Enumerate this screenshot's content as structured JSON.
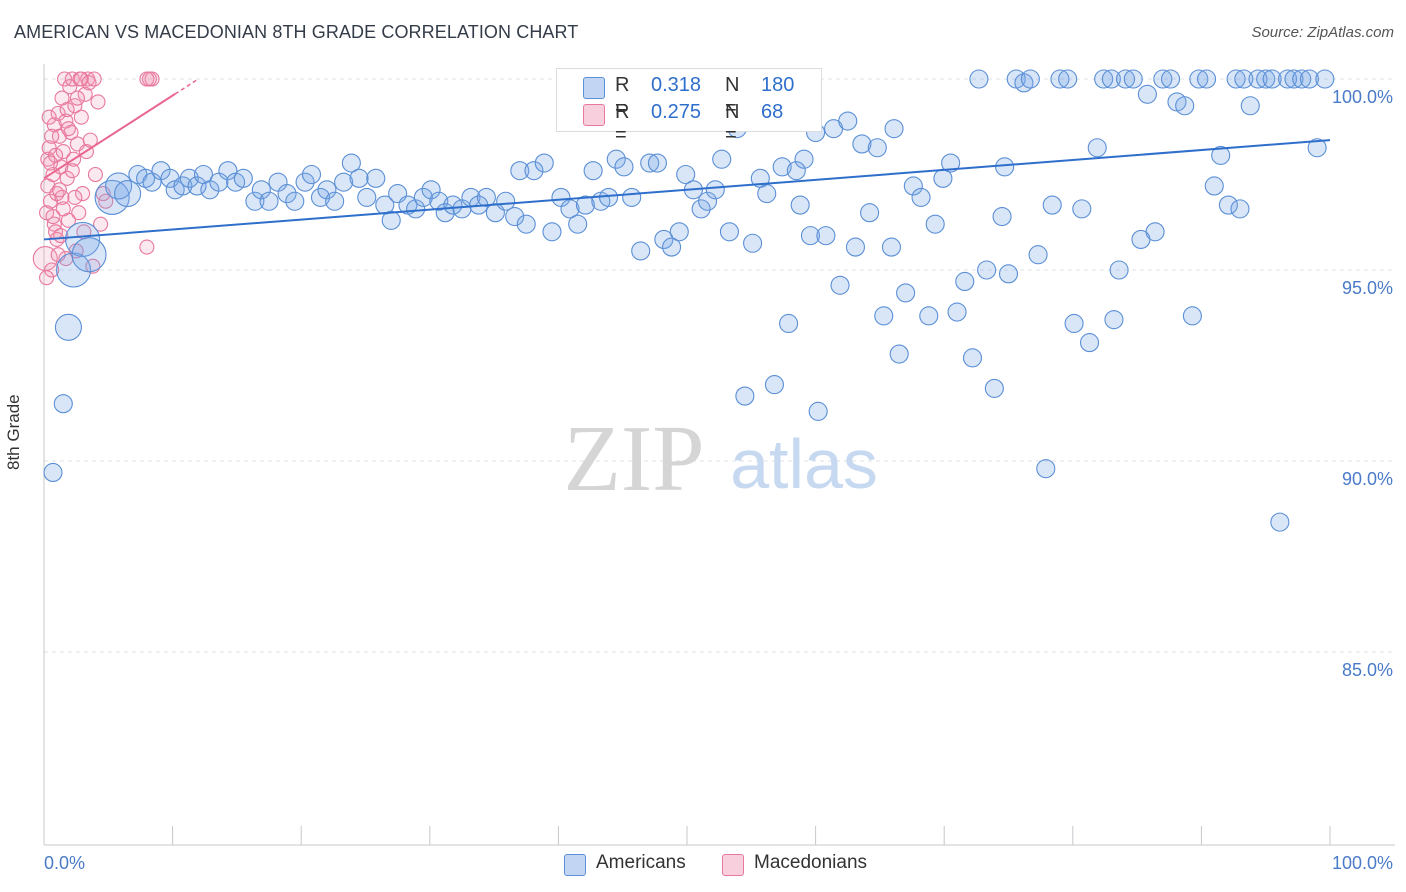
{
  "title": "AMERICAN VS MACEDONIAN 8TH GRADE CORRELATION CHART",
  "source": "Source: ZipAtlas.com",
  "watermark": {
    "zip": "ZIP",
    "atlas": "atlas"
  },
  "colors": {
    "blue": "#5b8fd6",
    "blue_fill": "rgba(120,165,230,0.28)",
    "blue_line": "#2f6fcc",
    "pink": "#e8799c",
    "pink_fill": "rgba(240,150,180,0.22)",
    "pink_line": "#e8668f",
    "tick_label": "#4a7bc8",
    "grid": "#dde1e6"
  },
  "legend": {
    "rows": [
      {
        "r_label": "R =",
        "r_value": "0.318",
        "n_label": "N =",
        "n_value": "180"
      },
      {
        "r_label": "R =",
        "r_value": "0.275",
        "n_label": "N =",
        "n_value": "68"
      }
    ]
  },
  "bottom_legend": {
    "americans": "Americans",
    "macedonians": "Macedonians"
  },
  "chart_data": {
    "type": "scatter",
    "title": "AMERICAN VS MACEDONIAN 8TH GRADE CORRELATION CHART",
    "xlabel": "",
    "ylabel": "8th Grade",
    "xlim": [
      0,
      100
    ],
    "ylim": [
      80,
      100.5
    ],
    "x_tick_labels": [
      "0.0%",
      "100.0%"
    ],
    "y_ticks": [
      85,
      90,
      95,
      100
    ],
    "y_tick_labels": [
      "85.0%",
      "90.0%",
      "95.0%",
      "100.0%"
    ],
    "grid": true,
    "series": [
      {
        "name": "Americans",
        "r": 0.318,
        "n": 180,
        "trend": {
          "x": [
            0,
            100
          ],
          "y": [
            95.8,
            98.4
          ]
        },
        "points": [
          {
            "x": 0.7,
            "y": 89.7
          },
          {
            "x": 1.5,
            "y": 91.5
          },
          {
            "x": 1.9,
            "y": 93.5,
            "s": 2
          },
          {
            "x": 2.3,
            "y": 95.0,
            "s": 3
          },
          {
            "x": 3.0,
            "y": 95.8,
            "s": 3
          },
          {
            "x": 3.5,
            "y": 95.4,
            "s": 3
          },
          {
            "x": 5.3,
            "y": 96.9,
            "s": 3
          },
          {
            "x": 5.8,
            "y": 97.2,
            "s": 2
          },
          {
            "x": 6.5,
            "y": 97.0,
            "s": 2
          },
          {
            "x": 7.3,
            "y": 97.5
          },
          {
            "x": 7.9,
            "y": 97.4
          },
          {
            "x": 8.4,
            "y": 97.3
          },
          {
            "x": 9.1,
            "y": 97.6
          },
          {
            "x": 9.8,
            "y": 97.4
          },
          {
            "x": 10.2,
            "y": 97.1
          },
          {
            "x": 10.8,
            "y": 97.2
          },
          {
            "x": 11.3,
            "y": 97.4
          },
          {
            "x": 11.9,
            "y": 97.2
          },
          {
            "x": 12.4,
            "y": 97.5
          },
          {
            "x": 12.9,
            "y": 97.1
          },
          {
            "x": 13.6,
            "y": 97.3
          },
          {
            "x": 14.3,
            "y": 97.6
          },
          {
            "x": 14.9,
            "y": 97.3
          },
          {
            "x": 15.5,
            "y": 97.4
          },
          {
            "x": 16.4,
            "y": 96.8
          },
          {
            "x": 16.9,
            "y": 97.1
          },
          {
            "x": 17.5,
            "y": 96.8
          },
          {
            "x": 18.2,
            "y": 97.3
          },
          {
            "x": 18.9,
            "y": 97.0
          },
          {
            "x": 19.5,
            "y": 96.8
          },
          {
            "x": 20.3,
            "y": 97.3
          },
          {
            "x": 20.8,
            "y": 97.5
          },
          {
            "x": 21.5,
            "y": 96.9
          },
          {
            "x": 22.0,
            "y": 97.1
          },
          {
            "x": 22.6,
            "y": 96.8
          },
          {
            "x": 23.3,
            "y": 97.3
          },
          {
            "x": 23.9,
            "y": 97.8
          },
          {
            "x": 24.5,
            "y": 97.4
          },
          {
            "x": 25.1,
            "y": 96.9
          },
          {
            "x": 25.8,
            "y": 97.4
          },
          {
            "x": 26.5,
            "y": 96.7
          },
          {
            "x": 27.0,
            "y": 96.3
          },
          {
            "x": 27.5,
            "y": 97.0
          },
          {
            "x": 28.3,
            "y": 96.7
          },
          {
            "x": 28.9,
            "y": 96.6
          },
          {
            "x": 29.5,
            "y": 96.9
          },
          {
            "x": 30.1,
            "y": 97.1
          },
          {
            "x": 30.7,
            "y": 96.8
          },
          {
            "x": 31.2,
            "y": 96.5
          },
          {
            "x": 31.8,
            "y": 96.7
          },
          {
            "x": 32.5,
            "y": 96.6
          },
          {
            "x": 33.2,
            "y": 96.9
          },
          {
            "x": 33.8,
            "y": 96.7
          },
          {
            "x": 34.4,
            "y": 96.9
          },
          {
            "x": 35.1,
            "y": 96.5
          },
          {
            "x": 35.9,
            "y": 96.8
          },
          {
            "x": 36.6,
            "y": 96.4
          },
          {
            "x": 37.0,
            "y": 97.6
          },
          {
            "x": 37.5,
            "y": 96.2
          },
          {
            "x": 38.1,
            "y": 97.6
          },
          {
            "x": 38.9,
            "y": 97.8
          },
          {
            "x": 39.5,
            "y": 96.0
          },
          {
            "x": 40.2,
            "y": 96.9
          },
          {
            "x": 40.9,
            "y": 96.6
          },
          {
            "x": 41.5,
            "y": 96.2
          },
          {
            "x": 42.1,
            "y": 96.7
          },
          {
            "x": 42.7,
            "y": 97.6
          },
          {
            "x": 43.3,
            "y": 96.8
          },
          {
            "x": 43.9,
            "y": 96.9
          },
          {
            "x": 44.5,
            "y": 97.9
          },
          {
            "x": 45.1,
            "y": 97.7
          },
          {
            "x": 45.7,
            "y": 96.9
          },
          {
            "x": 46.4,
            "y": 95.5
          },
          {
            "x": 47.1,
            "y": 97.8
          },
          {
            "x": 47.7,
            "y": 97.8
          },
          {
            "x": 48.2,
            "y": 95.8
          },
          {
            "x": 48.8,
            "y": 95.6
          },
          {
            "x": 49.4,
            "y": 96.0
          },
          {
            "x": 49.9,
            "y": 97.5
          },
          {
            "x": 50.5,
            "y": 97.1
          },
          {
            "x": 51.1,
            "y": 96.6
          },
          {
            "x": 51.6,
            "y": 96.8
          },
          {
            "x": 52.2,
            "y": 97.1
          },
          {
            "x": 52.7,
            "y": 97.9
          },
          {
            "x": 53.3,
            "y": 96.0
          },
          {
            "x": 53.9,
            "y": 98.7
          },
          {
            "x": 54.5,
            "y": 91.7
          },
          {
            "x": 55.1,
            "y": 95.7
          },
          {
            "x": 55.7,
            "y": 97.4
          },
          {
            "x": 56.2,
            "y": 97.0
          },
          {
            "x": 56.8,
            "y": 92.0
          },
          {
            "x": 57.4,
            "y": 97.7
          },
          {
            "x": 57.9,
            "y": 93.6
          },
          {
            "x": 58.5,
            "y": 97.6
          },
          {
            "x": 59.1,
            "y": 97.9
          },
          {
            "x": 59.6,
            "y": 95.9
          },
          {
            "x": 60.2,
            "y": 91.3
          },
          {
            "x": 60.8,
            "y": 95.9
          },
          {
            "x": 61.4,
            "y": 98.7
          },
          {
            "x": 61.9,
            "y": 94.6
          },
          {
            "x": 62.5,
            "y": 98.9
          },
          {
            "x": 63.1,
            "y": 95.6
          },
          {
            "x": 63.6,
            "y": 98.3
          },
          {
            "x": 64.2,
            "y": 96.5
          },
          {
            "x": 64.8,
            "y": 98.2
          },
          {
            "x": 65.3,
            "y": 93.8
          },
          {
            "x": 65.9,
            "y": 95.6
          },
          {
            "x": 66.5,
            "y": 92.8
          },
          {
            "x": 67.0,
            "y": 94.4
          },
          {
            "x": 67.6,
            "y": 97.2
          },
          {
            "x": 68.2,
            "y": 96.9
          },
          {
            "x": 68.8,
            "y": 93.8
          },
          {
            "x": 69.3,
            "y": 96.2
          },
          {
            "x": 69.9,
            "y": 97.4
          },
          {
            "x": 70.5,
            "y": 97.8
          },
          {
            "x": 71.0,
            "y": 93.9
          },
          {
            "x": 71.6,
            "y": 94.7
          },
          {
            "x": 72.2,
            "y": 92.7
          },
          {
            "x": 72.7,
            "y": 100.0
          },
          {
            "x": 73.3,
            "y": 95.0
          },
          {
            "x": 73.9,
            "y": 91.9
          },
          {
            "x": 74.5,
            "y": 96.4
          },
          {
            "x": 75.0,
            "y": 94.9
          },
          {
            "x": 75.6,
            "y": 100.0
          },
          {
            "x": 76.2,
            "y": 99.9
          },
          {
            "x": 76.7,
            "y": 100.0
          },
          {
            "x": 77.3,
            "y": 95.4
          },
          {
            "x": 77.9,
            "y": 89.8
          },
          {
            "x": 78.4,
            "y": 96.7
          },
          {
            "x": 79.0,
            "y": 100.0
          },
          {
            "x": 79.6,
            "y": 100.0
          },
          {
            "x": 80.1,
            "y": 93.6
          },
          {
            "x": 80.7,
            "y": 96.6
          },
          {
            "x": 81.3,
            "y": 93.1
          },
          {
            "x": 81.9,
            "y": 98.2
          },
          {
            "x": 82.4,
            "y": 100.0
          },
          {
            "x": 83.0,
            "y": 100.0
          },
          {
            "x": 83.6,
            "y": 95.0
          },
          {
            "x": 84.1,
            "y": 100.0
          },
          {
            "x": 84.7,
            "y": 100.0
          },
          {
            "x": 85.3,
            "y": 95.8
          },
          {
            "x": 85.8,
            "y": 99.6
          },
          {
            "x": 86.4,
            "y": 96.0
          },
          {
            "x": 87.0,
            "y": 100.0
          },
          {
            "x": 87.6,
            "y": 100.0
          },
          {
            "x": 88.1,
            "y": 99.4
          },
          {
            "x": 88.7,
            "y": 99.3
          },
          {
            "x": 89.3,
            "y": 93.8
          },
          {
            "x": 89.8,
            "y": 100.0
          },
          {
            "x": 90.4,
            "y": 100.0
          },
          {
            "x": 91.0,
            "y": 97.2
          },
          {
            "x": 91.5,
            "y": 98.0
          },
          {
            "x": 92.1,
            "y": 96.7
          },
          {
            "x": 92.7,
            "y": 100.0
          },
          {
            "x": 93.3,
            "y": 100.0
          },
          {
            "x": 93.8,
            "y": 99.3
          },
          {
            "x": 94.4,
            "y": 100.0
          },
          {
            "x": 95.0,
            "y": 100.0
          },
          {
            "x": 95.5,
            "y": 100.0
          },
          {
            "x": 96.1,
            "y": 88.4
          },
          {
            "x": 96.7,
            "y": 100.0
          },
          {
            "x": 97.2,
            "y": 100.0
          },
          {
            "x": 97.8,
            "y": 100.0
          },
          {
            "x": 98.4,
            "y": 100.0
          },
          {
            "x": 99.0,
            "y": 98.2
          },
          {
            "x": 58.8,
            "y": 96.7
          },
          {
            "x": 60.0,
            "y": 98.6
          },
          {
            "x": 83.2,
            "y": 93.7
          },
          {
            "x": 66.1,
            "y": 98.7
          },
          {
            "x": 74.7,
            "y": 97.7
          },
          {
            "x": 93.0,
            "y": 96.6
          },
          {
            "x": 99.6,
            "y": 100.0
          }
        ]
      },
      {
        "name": "Macedonians",
        "r": 0.275,
        "n": 68,
        "trend": {
          "x": [
            0,
            12
          ],
          "y": [
            97.4,
            100.0
          ]
        },
        "points": [
          {
            "x": 0.1,
            "y": 95.3,
            "s": 2
          },
          {
            "x": 0.2,
            "y": 96.5
          },
          {
            "x": 0.3,
            "y": 97.2
          },
          {
            "x": 0.3,
            "y": 97.9
          },
          {
            "x": 0.4,
            "y": 98.2
          },
          {
            "x": 0.5,
            "y": 96.8
          },
          {
            "x": 0.6,
            "y": 95.0
          },
          {
            "x": 0.7,
            "y": 97.5
          },
          {
            "x": 0.8,
            "y": 98.8
          },
          {
            "x": 0.8,
            "y": 96.2
          },
          {
            "x": 0.9,
            "y": 98.0
          },
          {
            "x": 1.0,
            "y": 97.0
          },
          {
            "x": 1.1,
            "y": 99.1
          },
          {
            "x": 1.2,
            "y": 98.5
          },
          {
            "x": 1.3,
            "y": 97.7
          },
          {
            "x": 1.4,
            "y": 96.9
          },
          {
            "x": 1.4,
            "y": 99.5
          },
          {
            "x": 1.5,
            "y": 98.1
          },
          {
            "x": 1.6,
            "y": 100.0
          },
          {
            "x": 1.7,
            "y": 98.9
          },
          {
            "x": 1.8,
            "y": 97.4
          },
          {
            "x": 1.9,
            "y": 96.3
          },
          {
            "x": 2.0,
            "y": 99.8
          },
          {
            "x": 2.1,
            "y": 98.6
          },
          {
            "x": 2.2,
            "y": 100.0
          },
          {
            "x": 2.3,
            "y": 97.9
          },
          {
            "x": 2.4,
            "y": 99.3
          },
          {
            "x": 2.5,
            "y": 95.5
          },
          {
            "x": 2.6,
            "y": 98.3
          },
          {
            "x": 2.7,
            "y": 96.5
          },
          {
            "x": 2.8,
            "y": 100.0
          },
          {
            "x": 2.9,
            "y": 99.0
          },
          {
            "x": 3.0,
            "y": 97.0
          },
          {
            "x": 3.2,
            "y": 99.6
          },
          {
            "x": 3.3,
            "y": 98.1
          },
          {
            "x": 3.4,
            "y": 100.0
          },
          {
            "x": 3.6,
            "y": 98.4
          },
          {
            "x": 3.8,
            "y": 95.1
          },
          {
            "x": 4.0,
            "y": 97.5
          },
          {
            "x": 4.2,
            "y": 99.4
          },
          {
            "x": 4.4,
            "y": 96.2
          },
          {
            "x": 4.6,
            "y": 97.0
          },
          {
            "x": 4.8,
            "y": 96.8
          },
          {
            "x": 8.2,
            "y": 100.0
          },
          {
            "x": 8.0,
            "y": 95.6
          },
          {
            "x": 8.4,
            "y": 100.0
          },
          {
            "x": 0.4,
            "y": 99.0
          },
          {
            "x": 0.6,
            "y": 98.5
          },
          {
            "x": 0.9,
            "y": 96.0
          },
          {
            "x": 1.0,
            "y": 95.8
          },
          {
            "x": 1.2,
            "y": 97.1
          },
          {
            "x": 1.5,
            "y": 96.6
          },
          {
            "x": 1.7,
            "y": 95.3
          },
          {
            "x": 1.9,
            "y": 98.7
          },
          {
            "x": 2.2,
            "y": 97.6
          },
          {
            "x": 2.4,
            "y": 96.9
          },
          {
            "x": 2.6,
            "y": 99.5
          },
          {
            "x": 2.9,
            "y": 100.0
          },
          {
            "x": 3.1,
            "y": 96.0
          },
          {
            "x": 3.5,
            "y": 99.9
          },
          {
            "x": 3.9,
            "y": 100.0
          },
          {
            "x": 0.2,
            "y": 94.8
          },
          {
            "x": 0.5,
            "y": 97.8
          },
          {
            "x": 1.3,
            "y": 95.9
          },
          {
            "x": 1.8,
            "y": 99.2
          },
          {
            "x": 0.7,
            "y": 96.4
          },
          {
            "x": 1.1,
            "y": 95.4
          },
          {
            "x": 8.0,
            "y": 100.0
          }
        ]
      }
    ]
  }
}
